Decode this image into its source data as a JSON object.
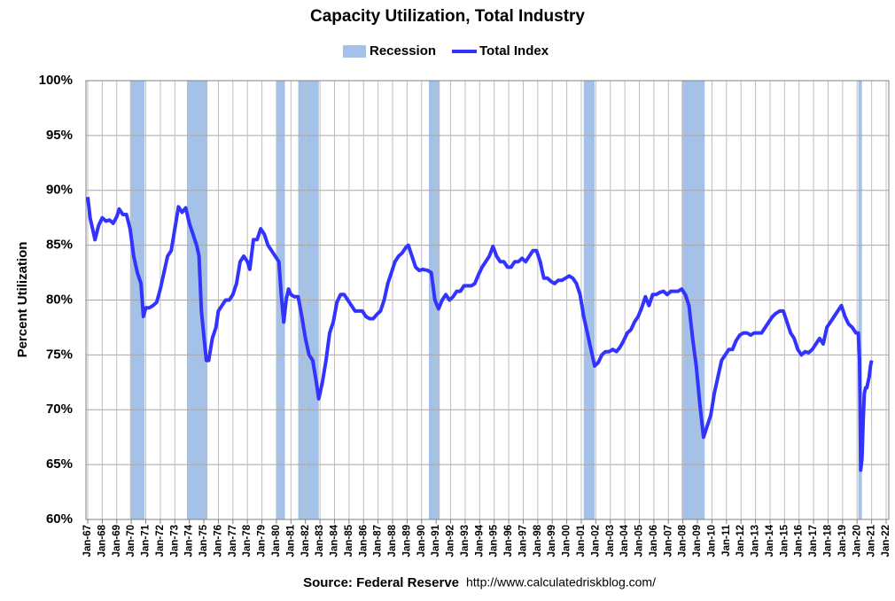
{
  "chart_data": {
    "type": "line",
    "title": "Capacity Utilization, Total Industry",
    "y_label": "Percent Utilization",
    "source": "Source: Federal Reserve",
    "url": "http://www.calculatedriskblog.com/",
    "grid": true,
    "ylim": [
      60,
      100
    ],
    "yticks": [
      {
        "value": 60,
        "label": "60%"
      },
      {
        "value": 65,
        "label": "65%"
      },
      {
        "value": 70,
        "label": "70%"
      },
      {
        "value": 75,
        "label": "75%"
      },
      {
        "value": 80,
        "label": "80%"
      },
      {
        "value": 85,
        "label": "85%"
      },
      {
        "value": 90,
        "label": "90%"
      },
      {
        "value": 95,
        "label": "95%"
      },
      {
        "value": 100,
        "label": "100%"
      }
    ],
    "xticks": [
      "Jan-67",
      "Jan-68",
      "Jan-69",
      "Jan-70",
      "Jan-71",
      "Jan-72",
      "Jan-73",
      "Jan-74",
      "Jan-75",
      "Jan-76",
      "Jan-77",
      "Jan-78",
      "Jan-79",
      "Jan-80",
      "Jan-81",
      "Jan-82",
      "Jan-83",
      "Jan-84",
      "Jan-85",
      "Jan-86",
      "Jan-87",
      "Jan-88",
      "Jan-89",
      "Jan-90",
      "Jan-91",
      "Jan-92",
      "Jan-93",
      "Jan-94",
      "Jan-95",
      "Jan-96",
      "Jan-97",
      "Jan-98",
      "Jan-99",
      "Jan-00",
      "Jan-01",
      "Jan-02",
      "Jan-03",
      "Jan-04",
      "Jan-05",
      "Jan-06",
      "Jan-07",
      "Jan-08",
      "Jan-09",
      "Jan-10",
      "Jan-11",
      "Jan-12",
      "Jan-13",
      "Jan-14",
      "Jan-15",
      "Jan-16",
      "Jan-17",
      "Jan-18",
      "Jan-19",
      "Jan-20",
      "Jan-21",
      "Jan-22"
    ],
    "recessions": {
      "name": "Recession",
      "color": "#a4c2e9",
      "periods": [
        {
          "start": "Dec-69",
          "end": "Nov-70"
        },
        {
          "start": "Nov-73",
          "end": "Mar-75"
        },
        {
          "start": "Jan-80",
          "end": "Jul-80"
        },
        {
          "start": "Jul-81",
          "end": "Nov-82"
        },
        {
          "start": "Jul-90",
          "end": "Mar-91"
        },
        {
          "start": "Mar-01",
          "end": "Nov-01"
        },
        {
          "start": "Dec-07",
          "end": "Jun-09"
        },
        {
          "start": "Feb-20",
          "end": "Apr-20"
        }
      ]
    },
    "x": [
      "Jan-67",
      "Mar-67",
      "Jul-67",
      "Oct-67",
      "Jan-68",
      "Apr-68",
      "Jul-68",
      "Oct-68",
      "Jan-69",
      "Mar-69",
      "Jun-69",
      "Sep-69",
      "Dec-69",
      "Mar-70",
      "Jun-70",
      "Sep-70",
      "Nov-70",
      "Jan-71",
      "Apr-71",
      "Jul-71",
      "Oct-71",
      "Jan-72",
      "Apr-72",
      "Jul-72",
      "Oct-72",
      "Jan-73",
      "Apr-73",
      "Jul-73",
      "Oct-73",
      "Jan-74",
      "Apr-74",
      "Jul-74",
      "Sep-74",
      "Nov-74",
      "Mar-75",
      "May-75",
      "Aug-75",
      "Nov-75",
      "Jan-76",
      "Apr-76",
      "Jul-76",
      "Oct-76",
      "Jan-77",
      "Apr-77",
      "Jul-77",
      "Oct-77",
      "Jan-78",
      "Mar-78",
      "Jun-78",
      "Sep-78",
      "Dec-78",
      "Mar-79",
      "Jun-79",
      "Sep-79",
      "Dec-79",
      "Mar-80",
      "May-80",
      "Jul-80",
      "Sep-80",
      "Nov-80",
      "Jan-81",
      "Apr-81",
      "Jul-81",
      "Oct-81",
      "Jan-82",
      "Apr-82",
      "Jul-82",
      "Oct-82",
      "Dec-82",
      "Mar-83",
      "Jun-83",
      "Sep-83",
      "Dec-83",
      "Mar-84",
      "Jun-84",
      "Sep-84",
      "Dec-84",
      "Mar-85",
      "Jun-85",
      "Sep-85",
      "Dec-85",
      "Mar-86",
      "Jun-86",
      "Sep-86",
      "Dec-86",
      "Mar-87",
      "Jun-87",
      "Sep-87",
      "Dec-87",
      "Mar-88",
      "Jun-88",
      "Sep-88",
      "Dec-88",
      "Feb-89",
      "May-89",
      "Aug-89",
      "Nov-89",
      "Feb-90",
      "Jun-90",
      "Sep-90",
      "Dec-90",
      "Mar-91",
      "Jun-91",
      "Sep-91",
      "Dec-91",
      "Mar-92",
      "Jun-92",
      "Sep-92",
      "Dec-92",
      "Mar-93",
      "Jun-93",
      "Sep-93",
      "Dec-93",
      "Mar-94",
      "Jun-94",
      "Sep-94",
      "Dec-94",
      "Mar-95",
      "Jun-95",
      "Sep-95",
      "Dec-95",
      "Mar-96",
      "Jun-96",
      "Sep-96",
      "Dec-96",
      "Mar-97",
      "Jun-97",
      "Sep-97",
      "Dec-97",
      "Mar-98",
      "Jun-98",
      "Sep-98",
      "Dec-98",
      "Mar-99",
      "Jun-99",
      "Sep-99",
      "Dec-99",
      "Mar-00",
      "Jun-00",
      "Sep-00",
      "Dec-00",
      "Mar-01",
      "Jun-01",
      "Sep-01",
      "Dec-01",
      "Mar-02",
      "Jun-02",
      "Sep-02",
      "Dec-02",
      "Mar-03",
      "Jun-03",
      "Sep-03",
      "Dec-03",
      "Mar-04",
      "Jun-04",
      "Sep-04",
      "Dec-04",
      "Mar-05",
      "Jun-05",
      "Sep-05",
      "Dec-05",
      "Mar-06",
      "Jun-06",
      "Sep-06",
      "Dec-06",
      "Mar-07",
      "Jun-07",
      "Sep-07",
      "Dec-07",
      "Mar-08",
      "Jun-08",
      "Sep-08",
      "Dec-08",
      "Mar-09",
      "Jun-09",
      "Sep-09",
      "Dec-09",
      "Mar-10",
      "Jun-10",
      "Sep-10",
      "Dec-10",
      "Mar-11",
      "Jun-11",
      "Sep-11",
      "Dec-11",
      "Mar-12",
      "Jun-12",
      "Sep-12",
      "Dec-12",
      "Mar-13",
      "Jun-13",
      "Sep-13",
      "Dec-13",
      "Mar-14",
      "Jun-14",
      "Sep-14",
      "Dec-14",
      "Mar-15",
      "Jun-15",
      "Sep-15",
      "Dec-15",
      "Mar-16",
      "Jun-16",
      "Sep-16",
      "Dec-16",
      "Mar-17",
      "Jun-17",
      "Sep-17",
      "Dec-17",
      "Mar-18",
      "Jun-18",
      "Sep-18",
      "Dec-18",
      "Mar-19",
      "Jun-19",
      "Sep-19",
      "Dec-19",
      "Feb-20",
      "Mar-20",
      "Apr-20",
      "May-20",
      "Jun-20",
      "Jul-20",
      "Aug-20",
      "Sep-20",
      "Oct-20",
      "Nov-20",
      "Dec-20",
      "Jan-21"
    ],
    "series": [
      {
        "name": "Total Index",
        "color": "#3333ff",
        "values": [
          89.4,
          87.5,
          85.5,
          86.8,
          87.5,
          87.2,
          87.3,
          87.0,
          87.6,
          88.3,
          87.8,
          87.8,
          86.5,
          84,
          82.5,
          81.5,
          78.5,
          79.3,
          79.3,
          79.5,
          79.8,
          81,
          82.5,
          84,
          84.5,
          86.5,
          88.5,
          88,
          88.4,
          87,
          86,
          85,
          84,
          79,
          74.5,
          74.5,
          76.5,
          77.5,
          79,
          79.5,
          80,
          80,
          80.5,
          81.5,
          83.5,
          84,
          83.5,
          82.8,
          85.5,
          85.5,
          86.5,
          86,
          85,
          84.5,
          84,
          83.5,
          80.5,
          78,
          80,
          81,
          80.5,
          80.3,
          80.3,
          78.5,
          76.5,
          75,
          74.5,
          72.5,
          71,
          72.5,
          74.5,
          77,
          78,
          79.8,
          80.5,
          80.5,
          80,
          79.5,
          79,
          79,
          79,
          78.5,
          78.3,
          78.3,
          78.7,
          79,
          80,
          81.5,
          82.5,
          83.5,
          84,
          84.3,
          84.8,
          85,
          84,
          83,
          82.7,
          82.8,
          82.7,
          82.5,
          80,
          79.2,
          80,
          80.5,
          80,
          80.3,
          80.8,
          80.8,
          81.3,
          81.3,
          81.3,
          81.5,
          82.3,
          83,
          83.5,
          84,
          84.9,
          84,
          83.5,
          83.5,
          83,
          83,
          83.5,
          83.5,
          83.8,
          83.5,
          84,
          84.5,
          84.5,
          83.5,
          82,
          82,
          81.7,
          81.5,
          81.8,
          81.8,
          82,
          82.2,
          82,
          81.5,
          80.5,
          78.5,
          77,
          75.5,
          74,
          74.3,
          75,
          75.3,
          75.3,
          75.5,
          75.3,
          75.7,
          76.3,
          77,
          77.3,
          78,
          78.5,
          79.3,
          80.3,
          79.5,
          80.5,
          80.5,
          80.7,
          80.8,
          80.5,
          80.8,
          80.8,
          80.8,
          81,
          80.5,
          79.5,
          76.5,
          74,
          70.5,
          67.5,
          68.5,
          69.5,
          71.5,
          73,
          74.5,
          75,
          75.5,
          75.5,
          76.3,
          76.8,
          77,
          77,
          76.8,
          77,
          77,
          77,
          77.5,
          78,
          78.5,
          78.8,
          79,
          79,
          78,
          77,
          76.5,
          75.5,
          75,
          75.3,
          75.2,
          75.5,
          76,
          76.5,
          76,
          77.5,
          78,
          78.5,
          79,
          79.5,
          78.5,
          77.8,
          77.5,
          77,
          77,
          74.5,
          64.5,
          65.5,
          69,
          71.5,
          72,
          72,
          72.5,
          73,
          74,
          74.5
        ]
      }
    ]
  }
}
